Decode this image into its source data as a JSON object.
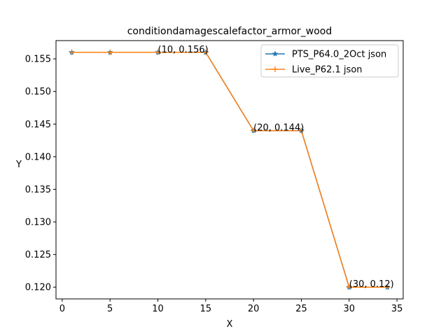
{
  "chart_data": {
    "type": "line",
    "title": "conditiondamagescalefactor_armor_wood",
    "xlabel": "X",
    "ylabel": "Y",
    "xlim": [
      -0.65,
      35.65
    ],
    "ylim": [
      0.1182,
      0.1578
    ],
    "xticks": [
      0,
      5,
      10,
      15,
      20,
      25,
      30,
      35
    ],
    "yticks": [
      0.12,
      0.125,
      0.13,
      0.135,
      0.14,
      0.145,
      0.15,
      0.155
    ],
    "ytick_labels": [
      "0.120",
      "0.125",
      "0.130",
      "0.135",
      "0.140",
      "0.145",
      "0.150",
      "0.155"
    ],
    "legend_position": "top-right",
    "series": [
      {
        "name": "PTS_P64.0_2Oct json",
        "color": "#1f77b4",
        "marker": "star",
        "x": [
          1,
          5,
          10,
          15,
          20,
          25,
          30,
          34
        ],
        "y": [
          0.156,
          0.156,
          0.156,
          0.156,
          0.144,
          0.144,
          0.12,
          0.12
        ]
      },
      {
        "name": "Live_P62.1 json",
        "color": "#ff7f0e",
        "marker": "plus",
        "x": [
          1,
          5,
          10,
          15,
          20,
          25,
          30,
          34
        ],
        "y": [
          0.156,
          0.156,
          0.156,
          0.156,
          0.144,
          0.144,
          0.12,
          0.12
        ]
      }
    ],
    "annotations": [
      {
        "x": 10,
        "y": 0.156,
        "text": "(10, 0.156)"
      },
      {
        "x": 20,
        "y": 0.144,
        "text": "(20, 0.144)"
      },
      {
        "x": 30,
        "y": 0.12,
        "text": "(30, 0.12)"
      }
    ]
  }
}
